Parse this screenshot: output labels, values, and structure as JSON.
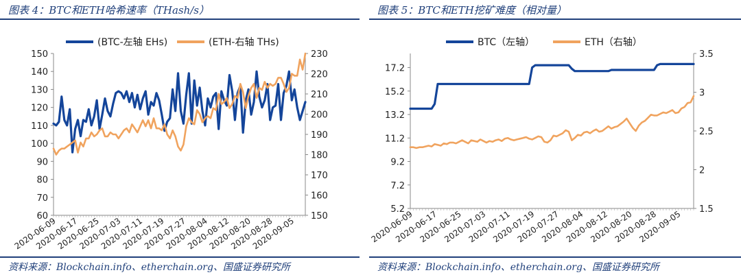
{
  "colors": {
    "brand_navy": "#1f3f7a",
    "series_btc": "#14459a",
    "series_eth": "#f0a35e"
  },
  "left": {
    "title": "图表 4：BTC和ETH哈希速率（THash/s）",
    "source": "资料来源：Blockchain.info、etherchain.org、国盛证券研究所"
  },
  "right": {
    "title": "图表 5：BTC和ETH挖矿难度（相对量）",
    "source": "资料来源：Blockchain.info、etherchain.org、国盛证券研究所"
  },
  "chart_data": [
    {
      "type": "line",
      "legend_position": "top",
      "grid": false,
      "x": [
        "2020-06-09",
        "2020-06-10",
        "2020-06-11",
        "2020-06-12",
        "2020-06-13",
        "2020-06-14",
        "2020-06-15",
        "2020-06-16",
        "2020-06-17",
        "2020-06-18",
        "2020-06-19",
        "2020-06-20",
        "2020-06-21",
        "2020-06-22",
        "2020-06-23",
        "2020-06-24",
        "2020-06-25",
        "2020-06-26",
        "2020-06-27",
        "2020-06-28",
        "2020-06-29",
        "2020-06-30",
        "2020-07-01",
        "2020-07-02",
        "2020-07-03",
        "2020-07-04",
        "2020-07-05",
        "2020-07-06",
        "2020-07-07",
        "2020-07-08",
        "2020-07-09",
        "2020-07-10",
        "2020-07-11",
        "2020-07-12",
        "2020-07-13",
        "2020-07-14",
        "2020-07-15",
        "2020-07-16",
        "2020-07-17",
        "2020-07-18",
        "2020-07-19",
        "2020-07-20",
        "2020-07-21",
        "2020-07-22",
        "2020-07-23",
        "2020-07-24",
        "2020-07-25",
        "2020-07-26",
        "2020-07-27",
        "2020-07-28",
        "2020-07-29",
        "2020-07-30",
        "2020-07-31",
        "2020-08-01",
        "2020-08-02",
        "2020-08-03",
        "2020-08-04",
        "2020-08-05",
        "2020-08-06",
        "2020-08-07",
        "2020-08-08",
        "2020-08-09",
        "2020-08-10",
        "2020-08-11",
        "2020-08-12",
        "2020-08-13",
        "2020-08-14",
        "2020-08-15",
        "2020-08-16",
        "2020-08-17",
        "2020-08-18",
        "2020-08-19",
        "2020-08-20",
        "2020-08-21",
        "2020-08-22",
        "2020-08-23",
        "2020-08-24",
        "2020-08-25",
        "2020-08-26",
        "2020-08-27",
        "2020-08-28",
        "2020-08-29",
        "2020-08-30",
        "2020-08-31",
        "2020-09-01",
        "2020-09-02",
        "2020-09-03",
        "2020-09-04",
        "2020-09-05",
        "2020-09-06",
        "2020-09-07",
        "2020-09-08",
        "2020-09-09",
        "2020-09-10"
      ],
      "x_tick_labels": [
        "2020-06-09",
        "2020-06-17",
        "2020-06-25",
        "2020-07-03",
        "2020-07-11",
        "2020-07-19",
        "2020-07-27",
        "2020-08-04",
        "2020-08-12",
        "2020-08-20",
        "2020-08-28",
        "2020-09-05"
      ],
      "y_left": {
        "range": [
          60,
          150
        ],
        "ticks": [
          "60",
          "70",
          "80",
          "90",
          "100",
          "110",
          "120",
          "130",
          "140",
          "150"
        ]
      },
      "y_right": {
        "range": [
          150,
          230
        ],
        "ticks": [
          "150",
          "160",
          "170",
          "180",
          "190",
          "200",
          "210",
          "220",
          "230"
        ]
      },
      "series": [
        {
          "name": "(BTC-左轴 EHs)",
          "axis": "left",
          "color": "#14459a",
          "values": [
            111,
            110,
            112,
            126,
            113,
            110,
            119,
            95,
            108,
            113,
            104,
            113,
            112,
            119,
            110,
            115,
            124,
            108,
            116,
            125,
            118,
            115,
            122,
            128,
            129,
            128,
            125,
            129,
            123,
            128,
            120,
            127,
            119,
            125,
            129,
            116,
            123,
            121,
            128,
            124,
            116,
            107,
            112,
            114,
            130,
            118,
            139,
            118,
            111,
            127,
            139,
            111,
            135,
            121,
            131,
            118,
            110,
            125,
            120,
            126,
            128,
            108,
            129,
            124,
            121,
            138,
            129,
            113,
            128,
            132,
            106,
            124,
            130,
            116,
            123,
            140,
            126,
            120,
            124,
            133,
            113,
            120,
            121,
            133,
            113,
            128,
            132,
            140,
            124,
            130,
            120,
            113,
            118,
            123
          ]
        },
        {
          "name": "(ETH-右轴 THs)",
          "axis": "right",
          "color": "#f0a35e",
          "values": [
            183,
            180,
            182,
            183,
            183,
            184,
            185,
            186,
            187,
            181,
            186,
            184,
            188,
            188,
            191,
            189,
            190,
            192,
            193,
            189,
            189,
            191,
            190,
            190,
            188,
            190,
            192,
            193,
            191,
            195,
            193,
            191,
            194,
            197,
            194,
            197,
            193,
            198,
            193,
            193,
            192,
            195,
            190,
            188,
            192,
            189,
            184,
            182,
            185,
            194,
            198,
            196,
            195,
            202,
            200,
            196,
            198,
            199,
            198,
            203,
            202,
            210,
            205,
            206,
            208,
            203,
            205,
            209,
            208,
            215,
            211,
            203,
            209,
            213,
            215,
            208,
            213,
            212,
            216,
            213,
            215,
            214,
            215,
            218,
            218,
            215,
            211,
            213,
            220,
            219,
            219,
            227,
            222,
            230
          ]
        }
      ]
    },
    {
      "type": "line",
      "legend_position": "top",
      "grid": false,
      "x": [
        "2020-06-09",
        "2020-06-10",
        "2020-06-11",
        "2020-06-12",
        "2020-06-13",
        "2020-06-14",
        "2020-06-15",
        "2020-06-16",
        "2020-06-17",
        "2020-06-18",
        "2020-06-19",
        "2020-06-20",
        "2020-06-21",
        "2020-06-22",
        "2020-06-23",
        "2020-06-24",
        "2020-06-25",
        "2020-06-26",
        "2020-06-27",
        "2020-06-28",
        "2020-06-29",
        "2020-06-30",
        "2020-07-01",
        "2020-07-02",
        "2020-07-03",
        "2020-07-04",
        "2020-07-05",
        "2020-07-06",
        "2020-07-07",
        "2020-07-08",
        "2020-07-09",
        "2020-07-10",
        "2020-07-11",
        "2020-07-12",
        "2020-07-13",
        "2020-07-14",
        "2020-07-15",
        "2020-07-16",
        "2020-07-17",
        "2020-07-18",
        "2020-07-19",
        "2020-07-20",
        "2020-07-21",
        "2020-07-22",
        "2020-07-23",
        "2020-07-24",
        "2020-07-25",
        "2020-07-26",
        "2020-07-27",
        "2020-07-28",
        "2020-07-29",
        "2020-07-30",
        "2020-07-31",
        "2020-08-01",
        "2020-08-02",
        "2020-08-03",
        "2020-08-04",
        "2020-08-05",
        "2020-08-06",
        "2020-08-07",
        "2020-08-08",
        "2020-08-09",
        "2020-08-10",
        "2020-08-11",
        "2020-08-12",
        "2020-08-13",
        "2020-08-14",
        "2020-08-15",
        "2020-08-16",
        "2020-08-17",
        "2020-08-18",
        "2020-08-19",
        "2020-08-20",
        "2020-08-21",
        "2020-08-22",
        "2020-08-23",
        "2020-08-24",
        "2020-08-25",
        "2020-08-26",
        "2020-08-27",
        "2020-08-28",
        "2020-08-29",
        "2020-08-30",
        "2020-08-31",
        "2020-09-01",
        "2020-09-02",
        "2020-09-03",
        "2020-09-04",
        "2020-09-05",
        "2020-09-06",
        "2020-09-07",
        "2020-09-08",
        "2020-09-09",
        "2020-09-10"
      ],
      "x_tick_labels": [
        "2020-06-09",
        "2020-06-17",
        "2020-06-25",
        "2020-07-03",
        "2020-07-11",
        "2020-07-19",
        "2020-07-27",
        "2020-08-04",
        "2020-08-12",
        "2020-08-20",
        "2020-08-28",
        "2020-09-05"
      ],
      "y_left": {
        "range": [
          5.2,
          18.4
        ],
        "ticks": [
          "5.2",
          "7.2",
          "9.2",
          "11.2",
          "13.2",
          "15.2",
          "17.2"
        ]
      },
      "y_right": {
        "range": [
          1.5,
          3.5
        ],
        "ticks": [
          "1.5",
          "2",
          "2.5",
          "3",
          "3.5"
        ]
      },
      "series": [
        {
          "name": "BTC（左轴）",
          "axis": "left",
          "color": "#14459a",
          "values": [
            13.7,
            13.7,
            13.7,
            13.7,
            13.7,
            13.7,
            13.7,
            13.7,
            14.1,
            15.8,
            15.8,
            15.8,
            15.8,
            15.8,
            15.8,
            15.8,
            15.8,
            15.8,
            15.8,
            15.8,
            15.8,
            15.8,
            15.8,
            15.8,
            15.8,
            15.8,
            15.8,
            15.8,
            15.8,
            15.8,
            15.8,
            15.8,
            15.8,
            15.8,
            15.8,
            15.8,
            15.8,
            15.8,
            15.8,
            15.8,
            17.2,
            17.4,
            17.4,
            17.4,
            17.4,
            17.4,
            17.4,
            17.4,
            17.4,
            17.4,
            17.4,
            17.4,
            17.4,
            17.1,
            16.9,
            16.9,
            16.9,
            16.9,
            16.9,
            16.9,
            16.9,
            16.9,
            16.9,
            16.9,
            16.9,
            16.9,
            17.0,
            17.0,
            17.0,
            17.0,
            17.0,
            17.0,
            17.0,
            17.0,
            17.0,
            17.0,
            17.0,
            17.0,
            17.0,
            17.0,
            17.0,
            17.4,
            17.5,
            17.5,
            17.5,
            17.5,
            17.5,
            17.5,
            17.5,
            17.5,
            17.5,
            17.5,
            17.5,
            17.5
          ]
        },
        {
          "name": "ETH（右轴）",
          "axis": "right",
          "color": "#f0a35e",
          "values": [
            2.29,
            2.29,
            2.28,
            2.29,
            2.29,
            2.3,
            2.31,
            2.3,
            2.33,
            2.32,
            2.31,
            2.34,
            2.33,
            2.35,
            2.35,
            2.34,
            2.36,
            2.38,
            2.36,
            2.34,
            2.38,
            2.37,
            2.36,
            2.39,
            2.37,
            2.35,
            2.37,
            2.36,
            2.38,
            2.39,
            2.37,
            2.4,
            2.41,
            2.39,
            2.38,
            2.39,
            2.4,
            2.41,
            2.42,
            2.4,
            2.39,
            2.41,
            2.43,
            2.42,
            2.36,
            2.35,
            2.38,
            2.44,
            2.43,
            2.45,
            2.47,
            2.51,
            2.49,
            2.38,
            2.41,
            2.45,
            2.44,
            2.48,
            2.49,
            2.47,
            2.5,
            2.52,
            2.49,
            2.5,
            2.53,
            2.56,
            2.53,
            2.55,
            2.56,
            2.59,
            2.62,
            2.66,
            2.6,
            2.54,
            2.5,
            2.57,
            2.61,
            2.63,
            2.67,
            2.71,
            2.7,
            2.7,
            2.72,
            2.74,
            2.73,
            2.75,
            2.77,
            2.73,
            2.74,
            2.79,
            2.81,
            2.86,
            2.87,
            2.95
          ]
        }
      ]
    }
  ]
}
